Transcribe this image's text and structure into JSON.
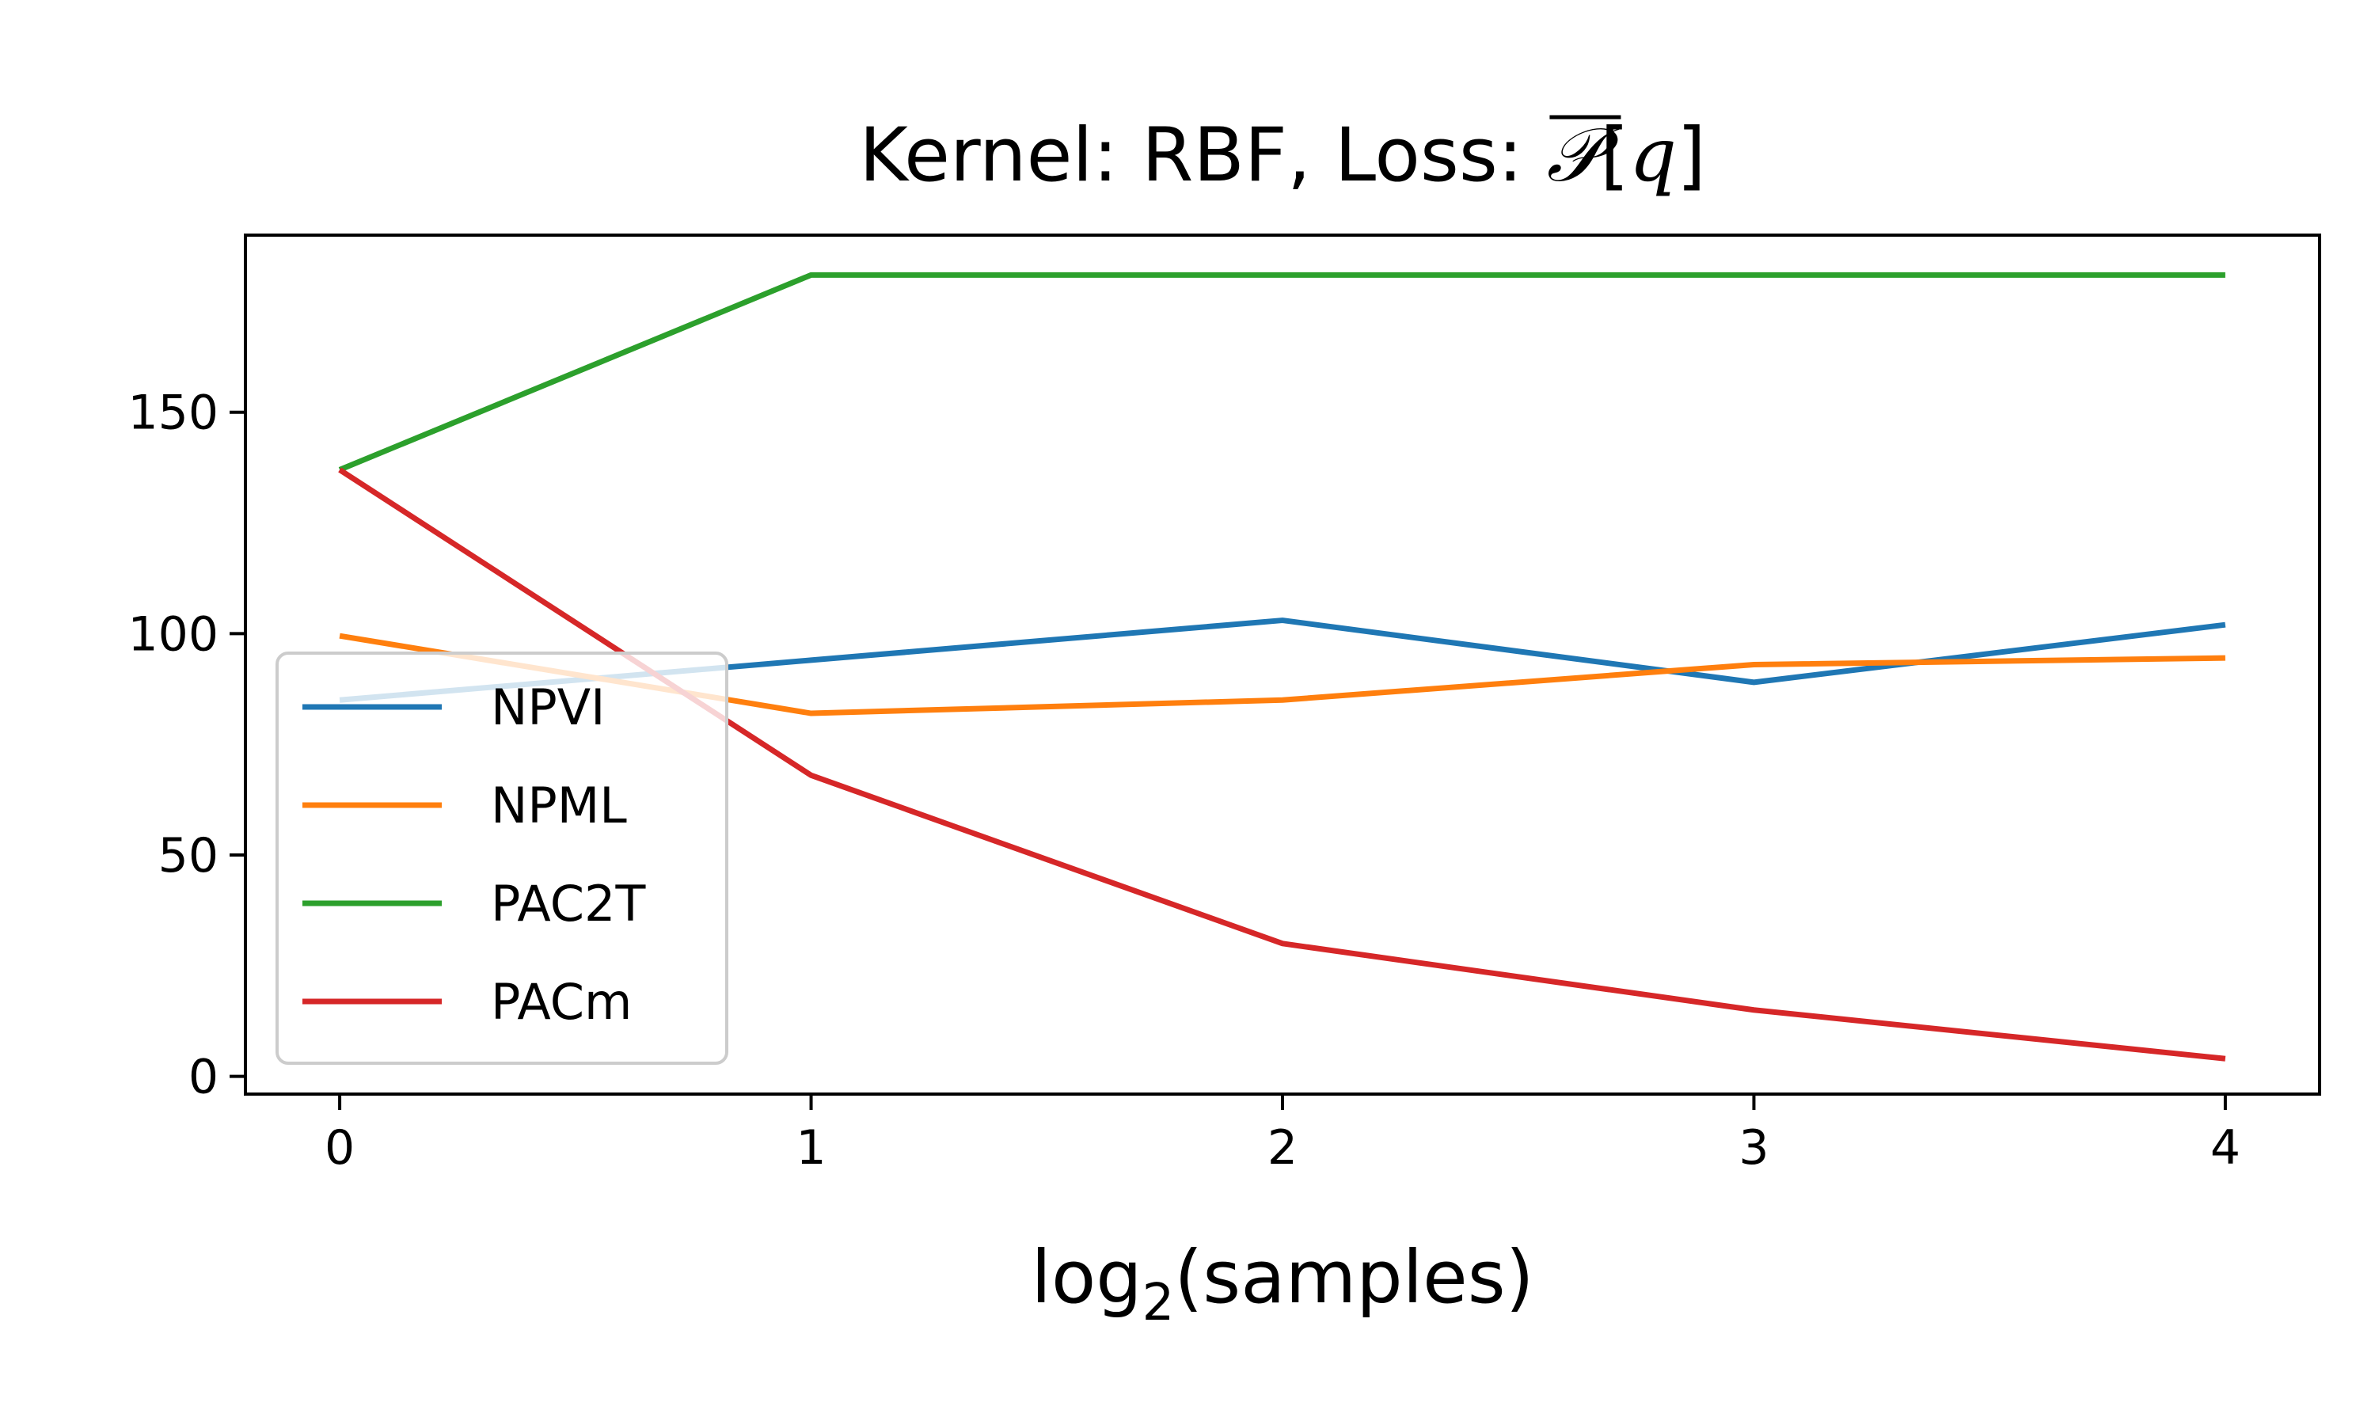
{
  "chart_data": {
    "type": "line",
    "title": {
      "prefix": "Kernel: RBF, Loss: ",
      "math": "𝒫[q]",
      "math_symbol": "𝒫",
      "math_open": "[",
      "math_var": "q",
      "math_close": "]"
    },
    "xlabel": {
      "base": "log",
      "subscript": "2",
      "rest": "(samples)"
    },
    "ylabel": "",
    "x": [
      0,
      1,
      2,
      3,
      4
    ],
    "xlim": [
      -0.2,
      4.2
    ],
    "ylim": [
      -4,
      190
    ],
    "xticks": [
      "0",
      "1",
      "2",
      "3",
      "4"
    ],
    "yticks": [
      0,
      50,
      100,
      150
    ],
    "ytick_labels": [
      "0",
      "50",
      "100",
      "150"
    ],
    "grid": false,
    "legend_position": "lower-left",
    "series": [
      {
        "name": "NPVI",
        "color": "#1f77b4",
        "values": [
          85,
          94,
          103,
          89,
          102
        ]
      },
      {
        "name": "NPML",
        "color": "#ff7f0e",
        "values": [
          99.5,
          82,
          85,
          93,
          94.5
        ]
      },
      {
        "name": "PAC2T",
        "color": "#2ca02c",
        "values": [
          137,
          181,
          181,
          181,
          181
        ]
      },
      {
        "name": "PACm",
        "color": "#d62728",
        "values": [
          137,
          68,
          30,
          15,
          4
        ]
      }
    ]
  }
}
